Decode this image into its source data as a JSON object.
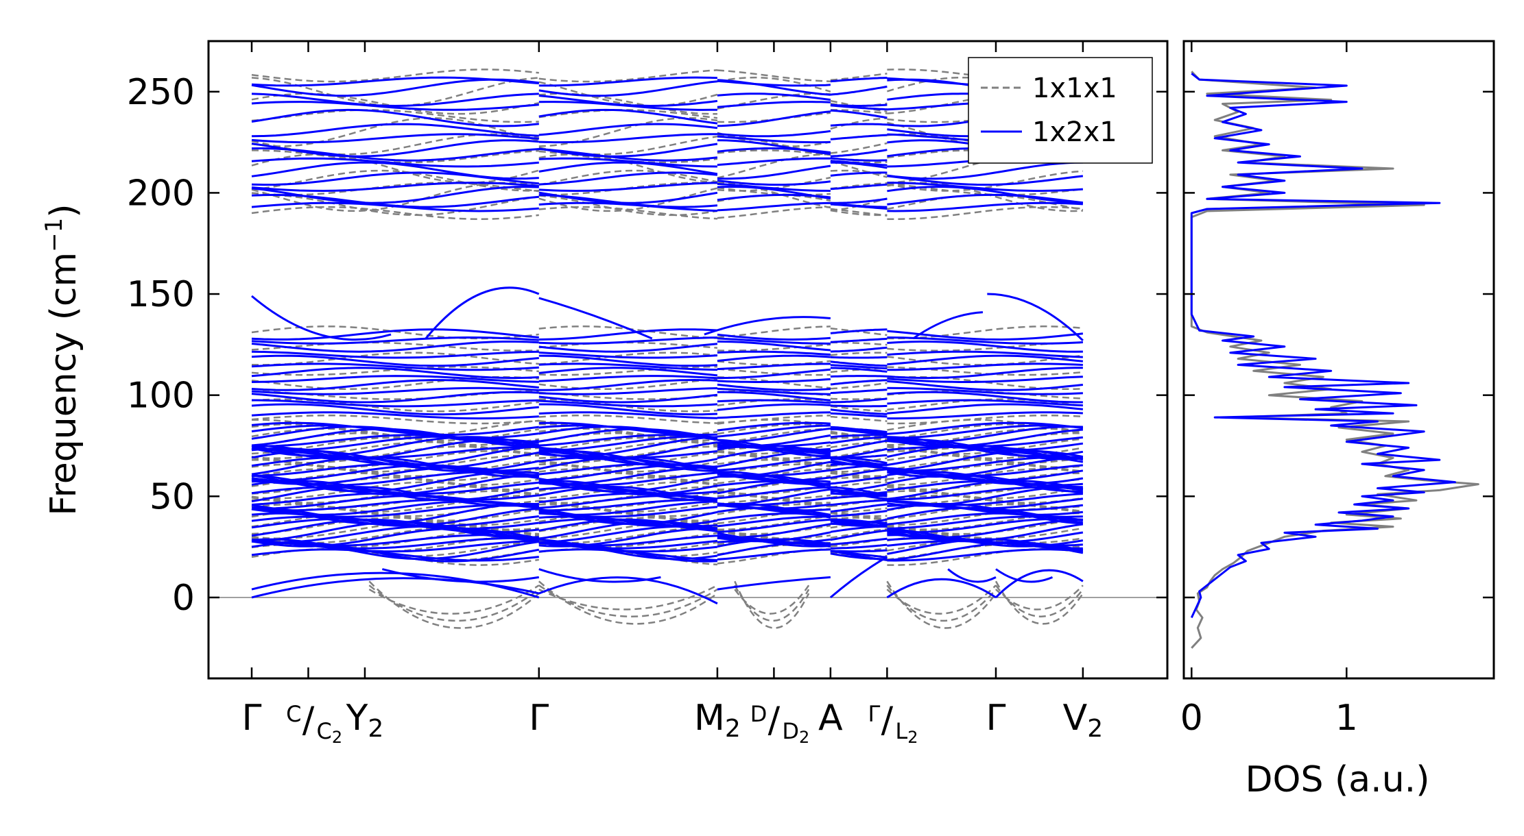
{
  "chart_data": [
    {
      "type": "line",
      "ylabel_main": "Frequency (cm",
      "ylabel_sup": "−1",
      "ylabel_close": ")",
      "ylim": [
        -40,
        275
      ],
      "yticks": [
        0,
        50,
        100,
        150,
        200,
        250
      ],
      "kpath": [
        {
          "x": 0.0,
          "main": "Γ",
          "sub": ""
        },
        {
          "x": 0.065,
          "main": "",
          "sub": ""
        },
        {
          "x": 0.13,
          "main": "Y",
          "sub": "2"
        },
        {
          "x": 0.33,
          "main": "Γ",
          "sub": ""
        },
        {
          "x": 0.535,
          "main": "M",
          "sub": "2"
        },
        {
          "x": 0.6,
          "main": "",
          "sub": ""
        },
        {
          "x": 0.665,
          "main": "A",
          "sub": ""
        },
        {
          "x": 0.73,
          "main": "",
          "sub": ""
        },
        {
          "x": 0.855,
          "main": "Γ",
          "sub": ""
        },
        {
          "x": 0.955,
          "main": "V",
          "sub": "2"
        }
      ],
      "fraction_labels": [
        {
          "x": 0.065,
          "top": "C",
          "bottom": "C",
          "bottom_sub": "2"
        },
        {
          "x": 0.6,
          "top": "D",
          "bottom": "D",
          "bottom_sub": "2"
        },
        {
          "x": 0.73,
          "top": "Γ",
          "bottom": "L",
          "bottom_sub": "2"
        }
      ],
      "series": [
        {
          "name": "1x1x1",
          "color": "#808080",
          "style": "dashed"
        },
        {
          "name": "1x2x1",
          "color": "#0000ff",
          "style": "solid"
        }
      ],
      "bands_1x2x1": {
        "upper_levels": [
          193,
          196,
          199,
          203,
          207,
          211,
          215,
          219,
          222,
          227,
          231,
          237,
          243,
          246,
          252,
          255
        ],
        "mid_levels": [
          90,
          93,
          96,
          99,
          102,
          105,
          108,
          111,
          114,
          117,
          120,
          124,
          127,
          130
        ],
        "low_band_range": [
          18,
          84
        ],
        "max_peaks": [
          149,
          150,
          138,
          150
        ]
      },
      "bands_1x1x1": {
        "upper_levels": [
          190,
          194,
          198,
          202,
          206,
          212,
          218,
          224,
          230,
          238,
          244,
          250,
          258
        ],
        "mid_levels": [
          88,
          95,
          100,
          106,
          112,
          118,
          124,
          131
        ],
        "imaginary_min": -25
      },
      "legend_position": "top-right"
    },
    {
      "type": "line",
      "xlabel": "DOS (a.u.)",
      "xticks": [
        0,
        1
      ],
      "xlim": [
        -0.05,
        1.95
      ],
      "ylim": [
        -40,
        275
      ],
      "series": [
        {
          "name": "1x1x1",
          "color": "#808080",
          "points": [
            [
              0.0,
              -25
            ],
            [
              0.06,
              -20
            ],
            [
              0.04,
              -15
            ],
            [
              0.07,
              -10
            ],
            [
              0.03,
              -6
            ],
            [
              0.05,
              -2
            ],
            [
              0.04,
              2
            ],
            [
              0.1,
              5
            ],
            [
              0.12,
              8
            ],
            [
              0.15,
              11
            ],
            [
              0.2,
              14
            ],
            [
              0.27,
              17
            ],
            [
              0.32,
              20
            ],
            [
              0.36,
              23
            ],
            [
              0.5,
              27
            ],
            [
              0.6,
              30
            ],
            [
              0.85,
              33
            ],
            [
              1.3,
              35
            ],
            [
              0.9,
              37
            ],
            [
              1.35,
              39
            ],
            [
              1.0,
              41
            ],
            [
              1.4,
              44
            ],
            [
              1.1,
              46
            ],
            [
              1.45,
              48
            ],
            [
              1.2,
              51
            ],
            [
              1.6,
              53
            ],
            [
              1.85,
              56
            ],
            [
              1.5,
              58
            ],
            [
              1.25,
              60
            ],
            [
              1.4,
              63
            ],
            [
              1.2,
              66
            ],
            [
              1.3,
              69
            ],
            [
              1.1,
              72
            ],
            [
              1.25,
              75
            ],
            [
              1.0,
              78
            ],
            [
              1.3,
              81
            ],
            [
              0.95,
              84
            ],
            [
              1.4,
              87
            ],
            [
              0.25,
              89
            ],
            [
              1.0,
              91
            ],
            [
              0.9,
              94
            ],
            [
              1.1,
              97
            ],
            [
              0.5,
              100
            ],
            [
              0.9,
              103
            ],
            [
              0.6,
              106
            ],
            [
              0.85,
              109
            ],
            [
              0.4,
              112
            ],
            [
              0.7,
              115
            ],
            [
              0.3,
              118
            ],
            [
              0.5,
              121
            ],
            [
              0.25,
              124
            ],
            [
              0.45,
              127
            ],
            [
              0.1,
              131
            ],
            [
              0.0,
              134
            ],
            [
              0.0,
              150
            ],
            [
              0.0,
              180
            ],
            [
              0.0,
              188
            ],
            [
              0.1,
              191
            ],
            [
              1.5,
              194
            ],
            [
              0.1,
              197
            ],
            [
              0.5,
              200
            ],
            [
              0.2,
              203
            ],
            [
              0.55,
              206
            ],
            [
              0.25,
              209
            ],
            [
              1.3,
              212
            ],
            [
              0.35,
              215
            ],
            [
              0.6,
              218
            ],
            [
              0.2,
              221
            ],
            [
              0.45,
              224
            ],
            [
              0.15,
              228
            ],
            [
              0.4,
              232
            ],
            [
              0.15,
              236
            ],
            [
              0.3,
              240
            ],
            [
              0.2,
              244
            ],
            [
              0.9,
              246
            ],
            [
              0.1,
              249
            ],
            [
              0.8,
              252
            ],
            [
              0.05,
              256
            ],
            [
              0.0,
              260
            ]
          ]
        },
        {
          "name": "1x2x1",
          "color": "#0000ff",
          "points": [
            [
              0.0,
              -10
            ],
            [
              0.03,
              -5
            ],
            [
              0.06,
              0
            ],
            [
              0.05,
              3
            ],
            [
              0.1,
              6
            ],
            [
              0.15,
              9
            ],
            [
              0.2,
              12
            ],
            [
              0.25,
              15
            ],
            [
              0.35,
              18
            ],
            [
              0.3,
              21
            ],
            [
              0.5,
              24
            ],
            [
              0.45,
              27
            ],
            [
              0.8,
              30
            ],
            [
              0.6,
              32
            ],
            [
              1.2,
              34
            ],
            [
              0.8,
              36
            ],
            [
              1.1,
              38
            ],
            [
              1.3,
              40
            ],
            [
              0.95,
              42
            ],
            [
              1.4,
              44
            ],
            [
              1.05,
              46
            ],
            [
              1.3,
              48
            ],
            [
              1.1,
              50
            ],
            [
              1.5,
              52
            ],
            [
              1.2,
              54
            ],
            [
              1.7,
              57
            ],
            [
              1.3,
              60
            ],
            [
              1.5,
              63
            ],
            [
              1.1,
              66
            ],
            [
              1.6,
              68
            ],
            [
              1.2,
              71
            ],
            [
              1.4,
              74
            ],
            [
              1.0,
              77
            ],
            [
              1.5,
              82
            ],
            [
              0.9,
              85
            ],
            [
              1.2,
              87
            ],
            [
              0.15,
              89
            ],
            [
              1.3,
              91
            ],
            [
              0.8,
              93
            ],
            [
              1.45,
              95
            ],
            [
              0.7,
              98
            ],
            [
              1.35,
              101
            ],
            [
              0.6,
              104
            ],
            [
              1.4,
              106
            ],
            [
              0.5,
              109
            ],
            [
              0.9,
              112
            ],
            [
              0.3,
              115
            ],
            [
              0.8,
              118
            ],
            [
              0.25,
              121
            ],
            [
              0.6,
              124
            ],
            [
              0.2,
              127
            ],
            [
              0.4,
              129
            ],
            [
              0.05,
              132
            ],
            [
              0.0,
              140
            ],
            [
              0.0,
              170
            ],
            [
              0.0,
              190
            ],
            [
              0.1,
              192
            ],
            [
              1.6,
              195
            ],
            [
              0.1,
              197
            ],
            [
              0.6,
              200
            ],
            [
              0.2,
              203
            ],
            [
              0.6,
              206
            ],
            [
              0.3,
              209
            ],
            [
              1.1,
              212
            ],
            [
              0.3,
              215
            ],
            [
              0.7,
              218
            ],
            [
              0.25,
              221
            ],
            [
              0.5,
              224
            ],
            [
              0.15,
              227
            ],
            [
              0.45,
              231
            ],
            [
              0.2,
              235
            ],
            [
              0.35,
              239
            ],
            [
              0.25,
              242
            ],
            [
              1.0,
              245
            ],
            [
              0.1,
              248
            ],
            [
              1.0,
              253
            ],
            [
              0.05,
              256
            ],
            [
              0.0,
              259
            ]
          ]
        }
      ]
    }
  ]
}
